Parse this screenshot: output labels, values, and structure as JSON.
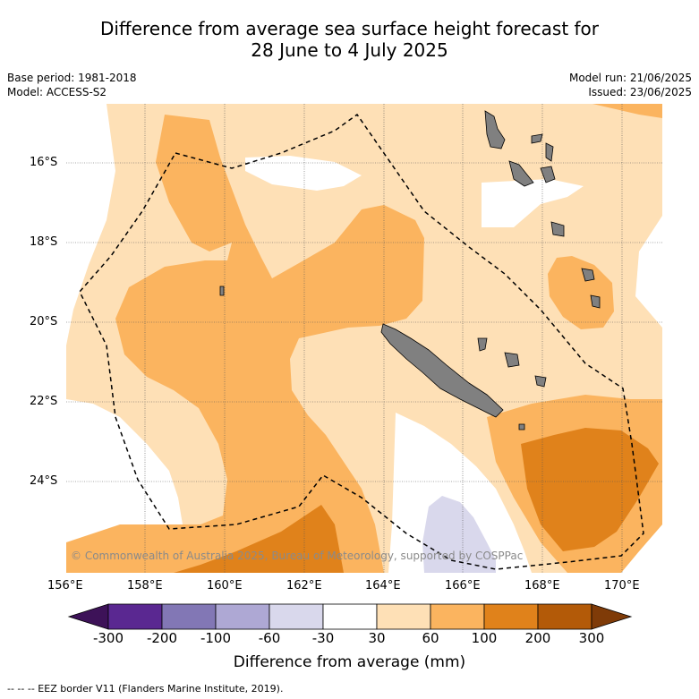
{
  "title_line1": "Difference from average sea surface height forecast for",
  "title_line2": "28 June to 4 July 2025",
  "base_period": "Base period: 1981-2018",
  "model": "Model: ACCESS-S2",
  "model_run": "Model run: 21/06/2025",
  "issued": "Issued: 23/06/2025",
  "copyright": "© Commonwealth of Australia 2025, Bureau of Meteorology, supported by COSPPac",
  "lon_ticks": [
    "156°E",
    "158°E",
    "160°E",
    "162°E",
    "164°E",
    "166°E",
    "168°E",
    "170°E"
  ],
  "lat_ticks": [
    "16°S",
    "18°S",
    "20°S",
    "22°S",
    "24°S"
  ],
  "colorbar": {
    "title": "Difference from average (mm)",
    "labels": [
      "-300",
      "-200",
      "-100",
      "-60",
      "-30",
      "30",
      "60",
      "100",
      "200",
      "300"
    ],
    "colors": [
      "#3d1258",
      "#5a2891",
      "#8277b5",
      "#aea8d4",
      "#d9d8ec",
      "#ffffff",
      "#fee0b6",
      "#fbb45f",
      "#e0821b",
      "#b35a08",
      "#7f3b08"
    ]
  },
  "footer": "-- -- -- EEZ border V11 (Flanders Marine Institute, 2019)."
}
